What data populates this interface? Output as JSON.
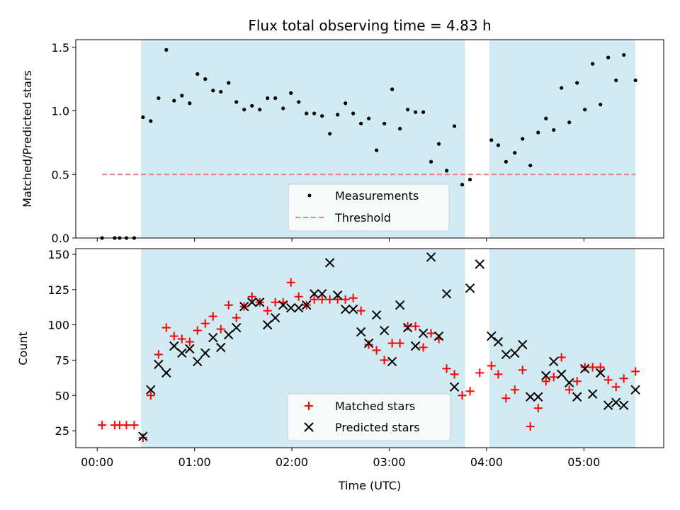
{
  "chart_data": [
    {
      "type": "scatter",
      "panel": "top",
      "title": "Flux total observing time = 4.83 h",
      "ylabel": "Matched/Predicted stars",
      "xlabel": "",
      "ylim": [
        0,
        1.56
      ],
      "yticks": [
        0.0,
        0.5,
        1.0,
        1.5
      ],
      "ytick_labels": [
        "0.0",
        "0.5",
        "1.0",
        "1.5"
      ],
      "grid": false,
      "legend_position": "lower-center",
      "shaded_intervals_hours": [
        [
          0.45,
          3.78
        ],
        [
          4.03,
          5.53
        ]
      ],
      "shade_color": "#add8e6",
      "threshold": {
        "name": "Threshold",
        "value": 0.5,
        "x_range_hours": [
          0.05,
          5.53
        ],
        "color": "#f08080"
      },
      "series": [
        {
          "name": "Measurements",
          "color": "#000000",
          "marker": "dot",
          "points": [
            [
              0.05,
              0.0
            ],
            [
              0.18,
              0.0
            ],
            [
              0.23,
              0.0
            ],
            [
              0.3,
              0.0
            ],
            [
              0.38,
              0.0
            ],
            [
              0.47,
              0.95
            ],
            [
              0.55,
              0.92
            ],
            [
              0.63,
              1.1
            ],
            [
              0.71,
              1.48
            ],
            [
              0.79,
              1.08
            ],
            [
              0.87,
              1.12
            ],
            [
              0.95,
              1.06
            ],
            [
              1.03,
              1.29
            ],
            [
              1.11,
              1.25
            ],
            [
              1.19,
              1.16
            ],
            [
              1.27,
              1.15
            ],
            [
              1.35,
              1.22
            ],
            [
              1.43,
              1.07
            ],
            [
              1.51,
              1.01
            ],
            [
              1.59,
              1.04
            ],
            [
              1.67,
              1.01
            ],
            [
              1.75,
              1.1
            ],
            [
              1.83,
              1.1
            ],
            [
              1.91,
              1.02
            ],
            [
              1.99,
              1.14
            ],
            [
              2.07,
              1.07
            ],
            [
              2.15,
              0.98
            ],
            [
              2.23,
              0.98
            ],
            [
              2.31,
              0.96
            ],
            [
              2.39,
              0.82
            ],
            [
              2.47,
              0.97
            ],
            [
              2.55,
              1.06
            ],
            [
              2.63,
              0.98
            ],
            [
              2.71,
              0.9
            ],
            [
              2.79,
              0.94
            ],
            [
              2.87,
              0.69
            ],
            [
              2.95,
              0.9
            ],
            [
              3.03,
              1.17
            ],
            [
              3.11,
              0.86
            ],
            [
              3.19,
              1.01
            ],
            [
              3.27,
              0.99
            ],
            [
              3.35,
              0.99
            ],
            [
              3.43,
              0.6
            ],
            [
              3.51,
              0.74
            ],
            [
              3.59,
              0.53
            ],
            [
              3.67,
              0.88
            ],
            [
              3.75,
              0.42
            ],
            [
              3.83,
              0.46
            ],
            [
              4.05,
              0.77
            ],
            [
              4.12,
              0.73
            ],
            [
              4.2,
              0.6
            ],
            [
              4.29,
              0.67
            ],
            [
              4.37,
              0.78
            ],
            [
              4.45,
              0.57
            ],
            [
              4.53,
              0.83
            ],
            [
              4.61,
              0.94
            ],
            [
              4.69,
              0.85
            ],
            [
              4.77,
              1.18
            ],
            [
              4.85,
              0.91
            ],
            [
              4.93,
              1.22
            ],
            [
              5.01,
              1.01
            ],
            [
              5.09,
              1.37
            ],
            [
              5.17,
              1.05
            ],
            [
              5.25,
              1.42
            ],
            [
              5.33,
              1.24
            ],
            [
              5.41,
              1.44
            ],
            [
              5.53,
              1.24
            ]
          ]
        }
      ],
      "legend": [
        "Measurements",
        "Threshold"
      ]
    },
    {
      "type": "scatter",
      "panel": "bottom",
      "title": "",
      "xlabel": "Time (UTC)",
      "ylabel": "Count",
      "xlim_hours": [
        -0.22,
        5.82
      ],
      "xticks_hours": [
        0,
        1,
        2,
        3,
        4,
        5
      ],
      "xtick_labels": [
        "00:00",
        "01:00",
        "02:00",
        "03:00",
        "04:00",
        "05:00"
      ],
      "ylim": [
        13,
        154
      ],
      "yticks": [
        25,
        50,
        75,
        100,
        125,
        150
      ],
      "ytick_labels": [
        "25",
        "50",
        "75",
        "100",
        "125",
        "150"
      ],
      "grid": false,
      "legend_position": "lower-center",
      "shaded_intervals_hours": [
        [
          0.45,
          3.78
        ],
        [
          4.03,
          5.53
        ]
      ],
      "series": [
        {
          "name": "Matched stars",
          "color": "#ff0000",
          "marker": "plus",
          "points": [
            [
              0.05,
              29
            ],
            [
              0.18,
              29
            ],
            [
              0.23,
              29
            ],
            [
              0.3,
              29
            ],
            [
              0.38,
              29
            ],
            [
              0.47,
              20
            ],
            [
              0.55,
              50
            ],
            [
              0.63,
              79
            ],
            [
              0.71,
              98
            ],
            [
              0.79,
              92
            ],
            [
              0.87,
              90
            ],
            [
              0.95,
              88
            ],
            [
              1.03,
              96
            ],
            [
              1.11,
              101
            ],
            [
              1.19,
              106
            ],
            [
              1.27,
              97
            ],
            [
              1.35,
              114
            ],
            [
              1.43,
              105
            ],
            [
              1.51,
              113
            ],
            [
              1.59,
              120
            ],
            [
              1.67,
              116
            ],
            [
              1.75,
              110
            ],
            [
              1.83,
              116
            ],
            [
              1.91,
              116
            ],
            [
              1.99,
              130
            ],
            [
              2.07,
              120
            ],
            [
              2.15,
              114
            ],
            [
              2.23,
              118
            ],
            [
              2.31,
              118
            ],
            [
              2.39,
              118
            ],
            [
              2.47,
              118
            ],
            [
              2.55,
              118
            ],
            [
              2.63,
              119
            ],
            [
              2.71,
              110
            ],
            [
              2.79,
              86
            ],
            [
              2.87,
              82
            ],
            [
              2.95,
              75
            ],
            [
              3.03,
              87
            ],
            [
              3.11,
              87
            ],
            [
              3.19,
              99
            ],
            [
              3.27,
              99
            ],
            [
              3.35,
              84
            ],
            [
              3.43,
              94
            ],
            [
              3.51,
              90
            ],
            [
              3.59,
              69
            ],
            [
              3.67,
              65
            ],
            [
              3.75,
              50
            ],
            [
              3.83,
              53
            ],
            [
              3.93,
              66
            ],
            [
              4.05,
              71
            ],
            [
              4.12,
              65
            ],
            [
              4.2,
              48
            ],
            [
              4.29,
              54
            ],
            [
              4.37,
              68
            ],
            [
              4.45,
              28
            ],
            [
              4.53,
              41
            ],
            [
              4.61,
              60
            ],
            [
              4.69,
              63
            ],
            [
              4.77,
              77
            ],
            [
              4.85,
              54
            ],
            [
              4.93,
              60
            ],
            [
              5.01,
              70
            ],
            [
              5.09,
              70
            ],
            [
              5.17,
              70
            ],
            [
              5.25,
              61
            ],
            [
              5.33,
              56
            ],
            [
              5.41,
              62
            ],
            [
              5.53,
              67
            ]
          ]
        },
        {
          "name": "Predicted stars",
          "color": "#000000",
          "marker": "x",
          "points": [
            [
              0.47,
              21
            ],
            [
              0.55,
              54
            ],
            [
              0.63,
              72
            ],
            [
              0.71,
              66
            ],
            [
              0.79,
              85
            ],
            [
              0.87,
              80
            ],
            [
              0.95,
              83
            ],
            [
              1.03,
              74
            ],
            [
              1.11,
              80
            ],
            [
              1.19,
              91
            ],
            [
              1.27,
              84
            ],
            [
              1.35,
              93
            ],
            [
              1.43,
              98
            ],
            [
              1.51,
              113
            ],
            [
              1.59,
              116
            ],
            [
              1.67,
              116
            ],
            [
              1.75,
              100
            ],
            [
              1.83,
              105
            ],
            [
              1.91,
              114
            ],
            [
              1.99,
              112
            ],
            [
              2.07,
              112
            ],
            [
              2.15,
              114
            ],
            [
              2.23,
              122
            ],
            [
              2.31,
              122
            ],
            [
              2.39,
              144
            ],
            [
              2.47,
              121
            ],
            [
              2.55,
              111
            ],
            [
              2.63,
              111
            ],
            [
              2.71,
              95
            ],
            [
              2.79,
              87
            ],
            [
              2.87,
              107
            ],
            [
              2.95,
              96
            ],
            [
              3.03,
              74
            ],
            [
              3.11,
              114
            ],
            [
              3.19,
              98
            ],
            [
              3.27,
              85
            ],
            [
              3.35,
              94
            ],
            [
              3.43,
              148
            ],
            [
              3.51,
              92
            ],
            [
              3.59,
              122
            ],
            [
              3.67,
              56
            ],
            [
              3.83,
              126
            ],
            [
              3.93,
              143
            ],
            [
              4.05,
              92
            ],
            [
              4.12,
              88
            ],
            [
              4.2,
              79
            ],
            [
              4.29,
              80
            ],
            [
              4.37,
              86
            ],
            [
              4.45,
              49
            ],
            [
              4.53,
              49
            ],
            [
              4.61,
              64
            ],
            [
              4.69,
              74
            ],
            [
              4.77,
              65
            ],
            [
              4.85,
              59
            ],
            [
              4.93,
              49
            ],
            [
              5.01,
              69
            ],
            [
              5.09,
              51
            ],
            [
              5.17,
              66
            ],
            [
              5.25,
              43
            ],
            [
              5.33,
              45
            ],
            [
              5.41,
              43
            ],
            [
              5.53,
              54
            ]
          ]
        }
      ],
      "legend": [
        "Matched stars",
        "Predicted stars"
      ]
    }
  ]
}
